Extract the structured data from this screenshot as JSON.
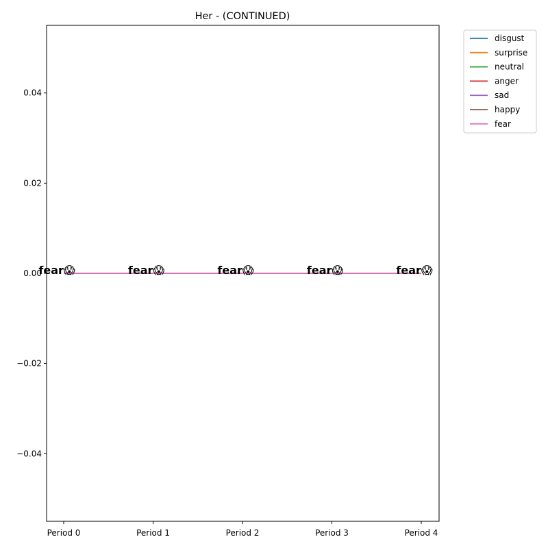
{
  "chart_data": {
    "type": "line",
    "title": "Her - (CONTINUED)",
    "xlabel": "",
    "ylabel": "",
    "categories": [
      "Period 0",
      "Period 1",
      "Period 2",
      "Period 3",
      "Period 4"
    ],
    "ylim": [
      -0.055,
      0.055
    ],
    "yticks": [
      -0.04,
      -0.02,
      0.0,
      0.02,
      0.04
    ],
    "ytick_labels": [
      "−0.04",
      "−0.02",
      "0.00",
      "0.02",
      "0.04"
    ],
    "grid": false,
    "legend_position": "outside-top-right",
    "series": [
      {
        "name": "disgust",
        "color": "#1f77b4",
        "values": [
          0,
          0,
          0,
          0,
          0
        ]
      },
      {
        "name": "surprise",
        "color": "#ff7f0e",
        "values": [
          0,
          0,
          0,
          0,
          0
        ]
      },
      {
        "name": "neutral",
        "color": "#2ca02c",
        "values": [
          0,
          0,
          0,
          0,
          0
        ]
      },
      {
        "name": "anger",
        "color": "#d62728",
        "values": [
          0,
          0,
          0,
          0,
          0
        ]
      },
      {
        "name": "sad",
        "color": "#9467bd",
        "values": [
          0,
          0,
          0,
          0,
          0
        ]
      },
      {
        "name": "happy",
        "color": "#8c564b",
        "values": [
          0,
          0,
          0,
          0,
          0
        ]
      },
      {
        "name": "fear",
        "color": "#e377c2",
        "values": [
          0,
          0,
          0,
          0,
          0
        ]
      }
    ],
    "point_labels": [
      {
        "x": "Period 0",
        "y": 0,
        "text": "fear😱"
      },
      {
        "x": "Period 1",
        "y": 0,
        "text": "fear😱"
      },
      {
        "x": "Period 2",
        "y": 0,
        "text": "fear😱"
      },
      {
        "x": "Period 3",
        "y": 0,
        "text": "fear😱"
      },
      {
        "x": "Period 4",
        "y": 0,
        "text": "fear😱"
      }
    ]
  }
}
